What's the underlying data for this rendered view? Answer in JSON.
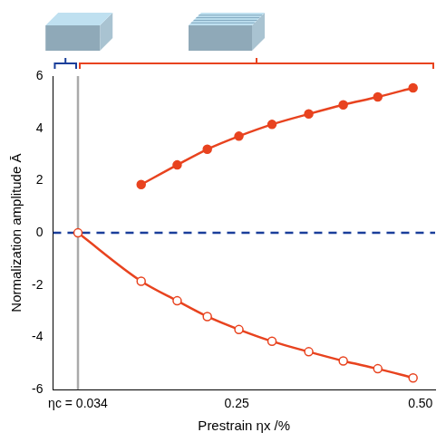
{
  "chart_data": {
    "type": "line",
    "x_label": "Prestrain ηx /%",
    "y_label": "Normalization amplitude Ā",
    "xlim": [
      0,
      0.52
    ],
    "xticks": [
      {
        "value": 0.034,
        "label": "ηc = 0.034"
      },
      0.25,
      {
        "value": 0.5,
        "label": "0.50"
      }
    ],
    "ylim": [
      -6,
      6
    ],
    "yticks": [
      -6,
      -4,
      -2,
      0,
      2,
      4,
      6
    ],
    "grid": false,
    "series": [
      {
        "color": "#e8431f",
        "marker": "open_circle",
        "line_style": "solid",
        "x": [
          0.034,
          0.12,
          0.169,
          0.21,
          0.253,
          0.298,
          0.348,
          0.395,
          0.442,
          0.49
        ],
        "values": [
          0,
          -1.85,
          -2.6,
          -3.2,
          -3.7,
          -4.15,
          -4.55,
          -4.9,
          -5.2,
          -5.55
        ]
      },
      {
        "color": "#e8431f",
        "marker": "filled_circle",
        "line_style": "solid",
        "x": [
          0.12,
          0.169,
          0.21,
          0.253,
          0.298,
          0.348,
          0.395,
          0.442,
          0.49
        ],
        "values": [
          1.85,
          2.6,
          3.2,
          3.7,
          4.15,
          4.55,
          4.9,
          5.2,
          5.55
        ]
      },
      {
        "color": "#1a3e9a",
        "marker": "none",
        "line_style": "dashed",
        "x": [
          0,
          0.52
        ],
        "values": [
          0,
          0
        ]
      },
      {
        "color": "#aaaaaa",
        "marker": "none",
        "line_style": "solid",
        "x": [
          0.034,
          0.034
        ],
        "values": [
          -6,
          6
        ]
      }
    ]
  }
}
